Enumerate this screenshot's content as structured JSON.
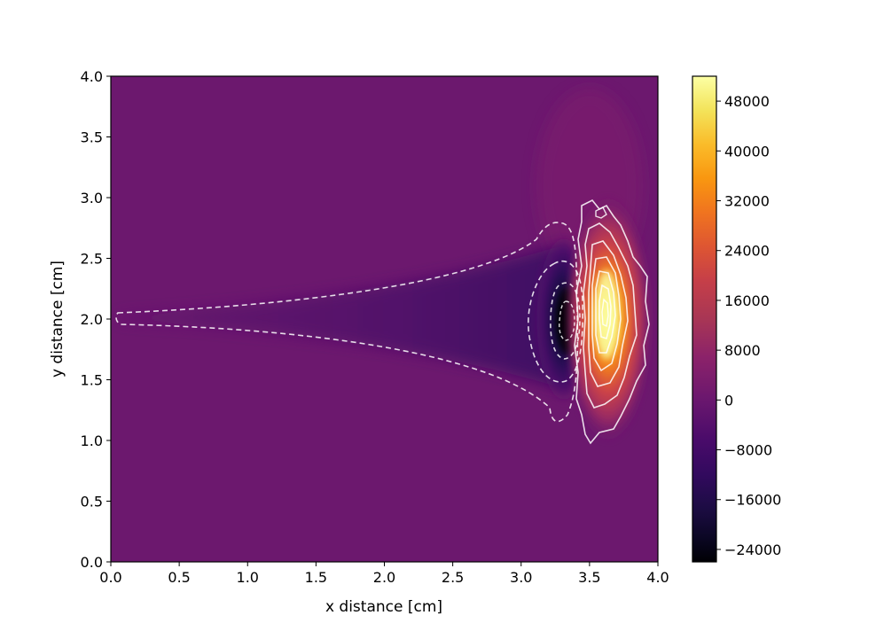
{
  "chart_data": {
    "type": "heatmap",
    "title": "",
    "xlabel": "x distance [cm]",
    "ylabel": "y distance [cm]",
    "xlim": [
      0.0,
      4.0
    ],
    "ylim": [
      0.0,
      4.0
    ],
    "x_ticks": [
      "0.0",
      "0.5",
      "1.0",
      "1.5",
      "2.0",
      "2.5",
      "3.0",
      "3.5",
      "4.0"
    ],
    "y_ticks": [
      "0.0",
      "0.5",
      "1.0",
      "1.5",
      "2.0",
      "2.5",
      "3.0",
      "3.5",
      "4.0"
    ],
    "grid": false,
    "colormap": "inferno",
    "colorbar": {
      "vmin": -26000,
      "vmax": 52000,
      "ticks": [
        "−24000",
        "−16000",
        "−8000",
        "0",
        "8000",
        "16000",
        "24000",
        "32000",
        "40000",
        "48000"
      ]
    },
    "background_value": 0,
    "features": [
      {
        "name": "negative-trough",
        "x_center": 3.33,
        "y_center": 2.0,
        "peak_value": -24000
      },
      {
        "name": "positive-peak",
        "x_center": 3.62,
        "y_center": 2.05,
        "peak_value": 52000
      }
    ],
    "contour_styles": {
      "negative": "dashed",
      "positive": "solid",
      "color": "#ffffff"
    }
  }
}
